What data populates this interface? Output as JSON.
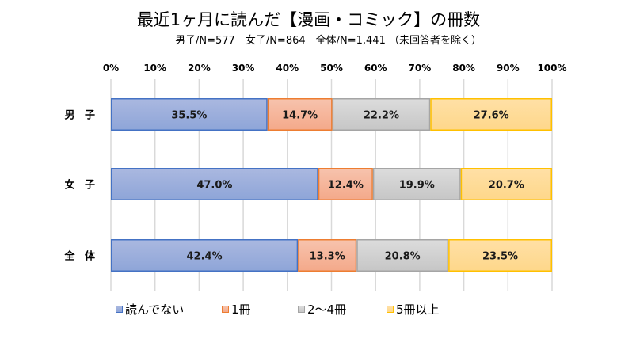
{
  "chart_data": {
    "type": "bar",
    "orientation": "horizontal",
    "stacked": "percent",
    "title": "最近1ヶ月に読んだ【漫画・コミック】の冊数",
    "subtitle": "男子/N=577　女子/N=864　全体/N=1,441 （未回答者を除く）",
    "categories": [
      "男子",
      "女子",
      "全体"
    ],
    "category_labels": [
      "男 子",
      "女 子",
      "全 体"
    ],
    "xlim": [
      0,
      100
    ],
    "xticks": [
      "0%",
      "10%",
      "20%",
      "30%",
      "40%",
      "50%",
      "60%",
      "70%",
      "80%",
      "90%",
      "100%"
    ],
    "grid": true,
    "legend_position": "bottom",
    "series": [
      {
        "name": "読んでない",
        "values": [
          35.5,
          47.0,
          42.4
        ],
        "labels": [
          "35.5%",
          "47.0%",
          "42.4%"
        ],
        "fill_top": "#aab8e0",
        "fill_bottom": "#8ea5d8",
        "border": "#4472c4"
      },
      {
        "name": "1冊",
        "values": [
          14.7,
          12.4,
          13.3
        ],
        "labels": [
          "14.7%",
          "12.4%",
          "13.3%"
        ],
        "fill_top": "#f7c3ad",
        "fill_bottom": "#f4a98a",
        "border": "#ed7d31"
      },
      {
        "name": "2～4冊",
        "values": [
          22.2,
          19.9,
          20.8
        ],
        "labels": [
          "22.2%",
          "19.9%",
          "20.8%"
        ],
        "fill_top": "#dcdcdc",
        "fill_bottom": "#c6c6c6",
        "border": "#a5a5a5"
      },
      {
        "name": "5冊以上",
        "values": [
          27.6,
          20.7,
          23.5
        ],
        "labels": [
          "27.6%",
          "20.7%",
          "23.5%"
        ],
        "fill_top": "#ffe0a6",
        "fill_bottom": "#fed78a",
        "border": "#ffc000"
      }
    ]
  }
}
